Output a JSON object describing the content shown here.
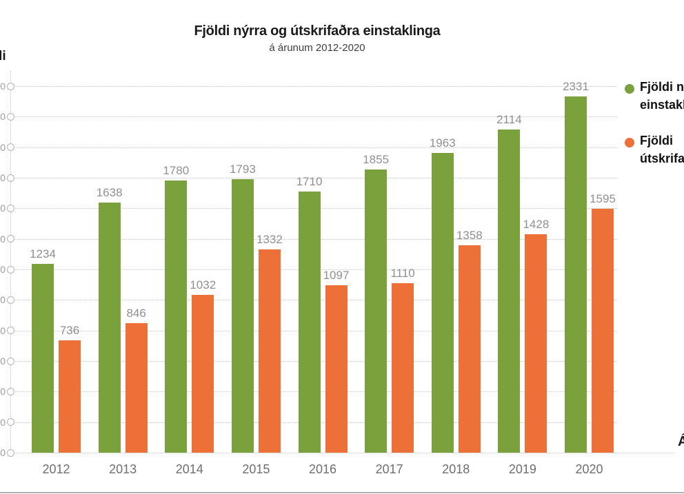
{
  "header": {
    "title": "Fjöldi nýrra og útskrifaðra einstaklinga",
    "subtitle": "á árunum 2012-2020"
  },
  "axes": {
    "y_title": "Fjöldi",
    "x_title": "Ár"
  },
  "legend": [
    {
      "label": "Fjöldi nýrra einstaklinga",
      "color": "#7aa13c"
    },
    {
      "label": "Fjöldi útskrifaðra",
      "color": "#ed7038"
    }
  ],
  "colors": {
    "series_green": "#7aa13c",
    "series_orange": "#ed7038",
    "gridline": "#c4c4c4",
    "value_label": "#8f8f8f",
    "year_label": "#6e6e6e",
    "bottom_rule": "#b0b0b0"
  },
  "chart_data": {
    "type": "bar",
    "title": "Fjöldi nýrra og útskrifaðra einstaklinga",
    "subtitle": "á árunum 2012-2020",
    "xlabel": "Ár",
    "ylabel": "Fjöldi",
    "categories": [
      "2012",
      "2013",
      "2014",
      "2015",
      "2016",
      "2017",
      "2018",
      "2019",
      "2020"
    ],
    "series": [
      {
        "name": "Fjöldi nýrra einstaklinga",
        "color": "#7aa13c",
        "values": [
          1234,
          1638,
          1780,
          1793,
          1710,
          1855,
          1963,
          2114,
          2331
        ]
      },
      {
        "name": "Fjöldi útskrifaðra",
        "color": "#ed7038",
        "values": [
          736,
          846,
          1032,
          1332,
          1097,
          1110,
          1358,
          1428,
          1595
        ]
      }
    ],
    "ylim": [
      0,
      2400
    ],
    "ystep": 200,
    "ytick_format": "space-thousands",
    "grid": "horizontal-dotted",
    "tick_marker": "open-circle",
    "legend_position": "right",
    "value_labels": "above-bars"
  }
}
